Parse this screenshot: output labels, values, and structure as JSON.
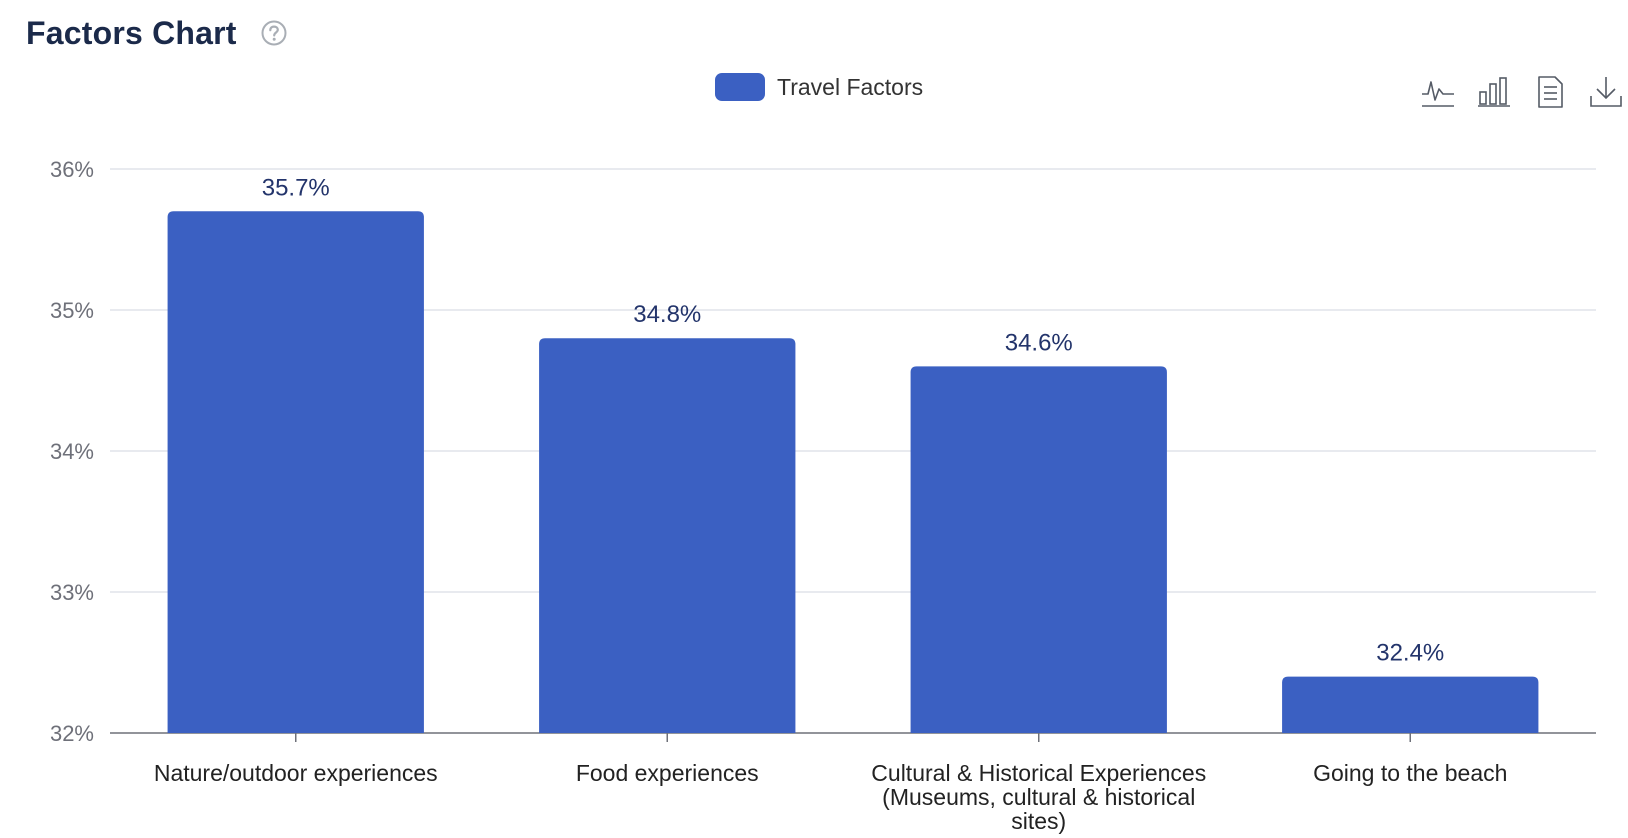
{
  "header": {
    "title": "Factors Chart"
  },
  "legend": {
    "label": "Travel Factors"
  },
  "toolbar": {
    "icons": [
      "line-chart-icon",
      "bar-chart-icon",
      "data-view-icon",
      "download-icon"
    ]
  },
  "colors": {
    "bar": "#3b60c2",
    "grid": "#e0e3ea",
    "axis": "#6e7079",
    "label": "#23346b"
  },
  "chart_data": {
    "type": "bar",
    "title": "Factors Chart",
    "categories": [
      [
        "Nature/outdoor experiences"
      ],
      [
        "Food experiences"
      ],
      [
        "Cultural & Historical Experiences",
        "(Museums, cultural & historical",
        "sites)"
      ],
      [
        "Going to the beach"
      ]
    ],
    "series": [
      {
        "name": "Travel Factors",
        "values": [
          35.7,
          34.8,
          34.6,
          32.4
        ],
        "labels": [
          "35.7%",
          "34.8%",
          "34.6%",
          "32.4%"
        ]
      }
    ],
    "ylim": [
      32,
      36
    ],
    "yticks": [
      {
        "value": 32,
        "label": "32%"
      },
      {
        "value": 33,
        "label": "33%"
      },
      {
        "value": 34,
        "label": "34%"
      },
      {
        "value": 35,
        "label": "35%"
      },
      {
        "value": 36,
        "label": "36%"
      }
    ],
    "grid": true,
    "legend_position": "top-center",
    "xlabel": "",
    "ylabel": ""
  }
}
